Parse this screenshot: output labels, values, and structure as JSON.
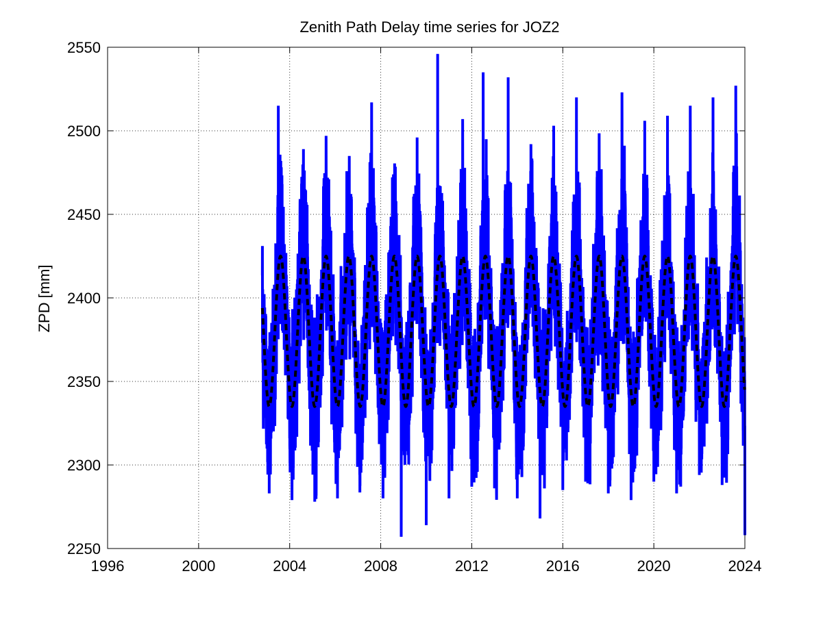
{
  "chart_data": {
    "type": "line",
    "title": "Zenith Path Delay time series for JOZ2",
    "xlabel": "",
    "ylabel": "ZPD [mm]",
    "xlim": [
      1996,
      2024
    ],
    "ylim": [
      2250,
      2550
    ],
    "x_ticks": [
      "1996",
      "2000",
      "2004",
      "2008",
      "2012",
      "2016",
      "2020",
      "2024"
    ],
    "y_ticks": [
      "2250",
      "2300",
      "2350",
      "2400",
      "2450",
      "2500",
      "2550"
    ],
    "grid": true,
    "data_range_x": [
      2002.8,
      2024.0
    ],
    "series": [
      {
        "style": "solid",
        "color": "#0000ff",
        "annual_peaks": [
          {
            "x": 2003.5,
            "y": 2515
          },
          {
            "x": 2004.6,
            "y": 2440
          },
          {
            "x": 2005.6,
            "y": 2497
          },
          {
            "x": 2006.6,
            "y": 2460
          },
          {
            "x": 2007.6,
            "y": 2517
          },
          {
            "x": 2008.6,
            "y": 2450
          },
          {
            "x": 2009.6,
            "y": 2496
          },
          {
            "x": 2010.5,
            "y": 2546
          },
          {
            "x": 2011.6,
            "y": 2507
          },
          {
            "x": 2012.5,
            "y": 2535
          },
          {
            "x": 2013.6,
            "y": 2532
          },
          {
            "x": 2014.6,
            "y": 2492
          },
          {
            "x": 2015.6,
            "y": 2503
          },
          {
            "x": 2016.6,
            "y": 2520
          },
          {
            "x": 2017.6,
            "y": 2484
          },
          {
            "x": 2018.6,
            "y": 2523
          },
          {
            "x": 2019.6,
            "y": 2506
          },
          {
            "x": 2020.6,
            "y": 2509
          },
          {
            "x": 2021.6,
            "y": 2515
          },
          {
            "x": 2022.6,
            "y": 2520
          },
          {
            "x": 2023.6,
            "y": 2527
          }
        ],
        "annual_troughs": [
          {
            "x": 2003.1,
            "y": 2283
          },
          {
            "x": 2004.1,
            "y": 2279
          },
          {
            "x": 2005.1,
            "y": 2278
          },
          {
            "x": 2006.1,
            "y": 2280
          },
          {
            "x": 2007.1,
            "y": 2300
          },
          {
            "x": 2008.1,
            "y": 2280
          },
          {
            "x": 2008.9,
            "y": 2257
          },
          {
            "x": 2010.0,
            "y": 2264
          },
          {
            "x": 2011.0,
            "y": 2280
          },
          {
            "x": 2012.0,
            "y": 2287
          },
          {
            "x": 2013.0,
            "y": 2286
          },
          {
            "x": 2014.0,
            "y": 2280
          },
          {
            "x": 2015.0,
            "y": 2268
          },
          {
            "x": 2016.0,
            "y": 2285
          },
          {
            "x": 2017.0,
            "y": 2290
          },
          {
            "x": 2018.0,
            "y": 2283
          },
          {
            "x": 2019.0,
            "y": 2279
          },
          {
            "x": 2020.0,
            "y": 2290
          },
          {
            "x": 2021.0,
            "y": 2283
          },
          {
            "x": 2022.0,
            "y": 2294
          },
          {
            "x": 2023.0,
            "y": 2288
          },
          {
            "x": 2024.0,
            "y": 2258
          }
        ]
      },
      {
        "style": "dashed",
        "color": "#000000",
        "model": "seasonal",
        "mean": 2380,
        "amplitude": 45,
        "peak_phase": 0.6
      }
    ]
  }
}
